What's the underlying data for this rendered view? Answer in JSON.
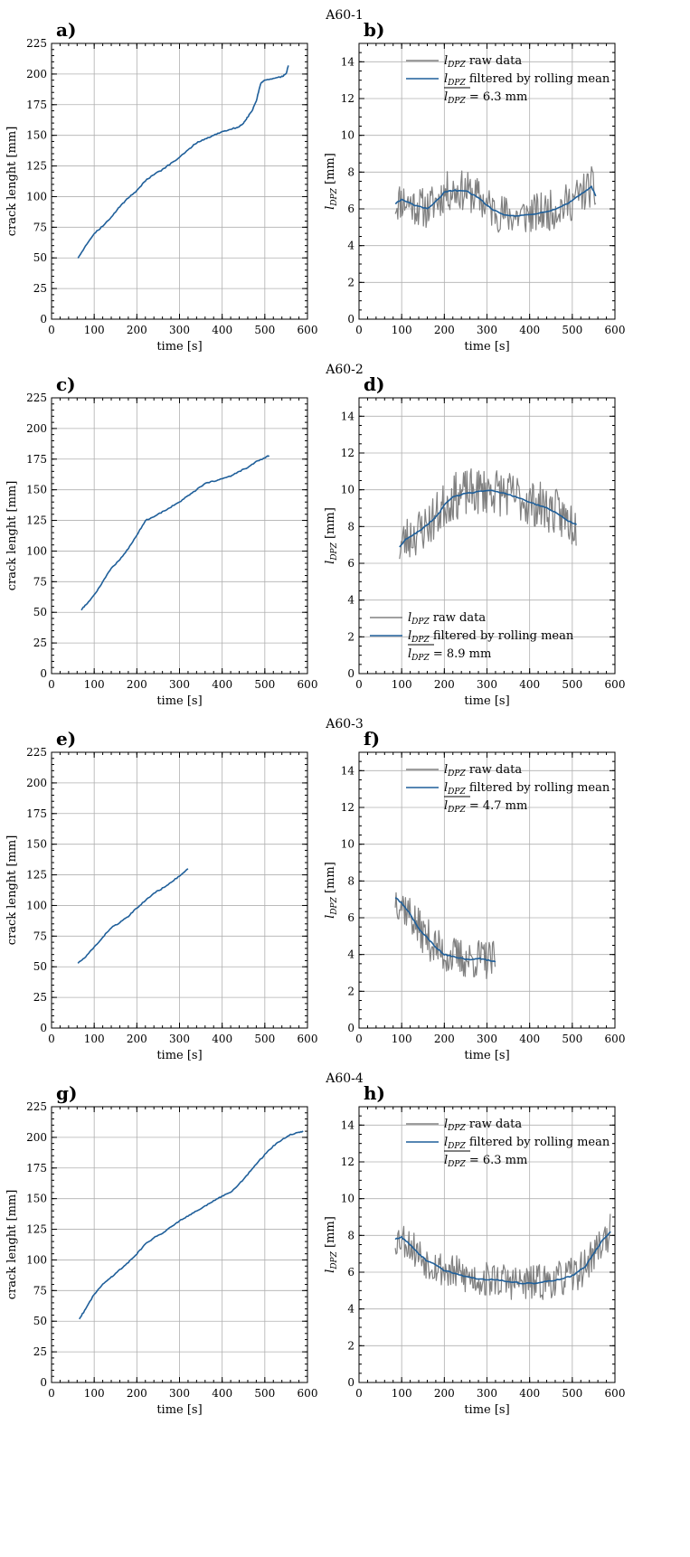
{
  "figure": {
    "panels": [
      {
        "letter": "a)",
        "row_title": "A60-1"
      },
      {
        "letter": "b)"
      },
      {
        "letter": "c)",
        "row_title": "A60-2"
      },
      {
        "letter": "d)"
      },
      {
        "letter": "e)",
        "row_title": "A60-3"
      },
      {
        "letter": "f)"
      },
      {
        "letter": "g)",
        "row_title": "A60-4"
      },
      {
        "letter": "h)"
      }
    ]
  },
  "colors": {
    "raw": "#808080",
    "filtered": "#1f5f9a",
    "grid": "#b0b0b0"
  },
  "chart_data": [
    {
      "type": "line",
      "panel": "a)",
      "row_title": "A60-1",
      "xlabel": "time [s]",
      "ylabel": "crack lenght [mm]",
      "xlim": [
        0,
        600
      ],
      "ylim": [
        0,
        225
      ],
      "xticks": [
        0,
        100,
        200,
        300,
        400,
        500,
        600
      ],
      "yticks": [
        0,
        25,
        50,
        75,
        100,
        125,
        150,
        175,
        200,
        225
      ],
      "grid": true,
      "series": [
        {
          "color": "#1f5f9a",
          "x": [
            62,
            80,
            100,
            120,
            140,
            160,
            180,
            200,
            220,
            240,
            260,
            280,
            300,
            320,
            340,
            360,
            380,
            400,
            420,
            440,
            450,
            460,
            470,
            480,
            490,
            500,
            520,
            540,
            550,
            555
          ],
          "y": [
            50,
            60,
            70,
            76,
            83,
            92,
            99,
            105,
            113,
            118,
            122,
            127,
            132,
            138,
            144,
            147,
            150,
            153,
            155,
            157,
            160,
            165,
            170,
            178,
            192,
            195,
            196,
            198,
            200,
            207
          ]
        }
      ]
    },
    {
      "type": "line",
      "panel": "b)",
      "xlabel": "time [s]",
      "ylabel": "l_DPZ [mm]",
      "xlim": [
        0,
        600
      ],
      "ylim": [
        0,
        15
      ],
      "xticks": [
        0,
        100,
        200,
        300,
        400,
        500,
        600
      ],
      "yticks": [
        0,
        2,
        4,
        6,
        8,
        10,
        12,
        14
      ],
      "grid": true,
      "legend": {
        "placement": "top-center",
        "entries": [
          "l_DPZ raw data",
          "l_DPZ filtered by rolling mean",
          "mean l_DPZ = 6.3 mm"
        ],
        "mean_label": "= 6.3 mm"
      },
      "series": [
        {
          "name": "l_DPZ raw data",
          "color": "#808080",
          "noise": 1.1,
          "seed": 11,
          "x": [
            85,
            100,
            130,
            160,
            190,
            200,
            220,
            250,
            280,
            310,
            340,
            370,
            400,
            430,
            460,
            490,
            520,
            545,
            555
          ],
          "y": [
            6.3,
            6.5,
            6.2,
            6.0,
            6.6,
            6.9,
            7.0,
            7.0,
            6.6,
            6.0,
            5.7,
            5.6,
            5.7,
            5.8,
            6.0,
            6.3,
            6.8,
            7.2,
            6.7
          ]
        },
        {
          "name": "l_DPZ filtered by rolling mean",
          "color": "#1f5f9a",
          "x": [
            85,
            100,
            130,
            160,
            190,
            200,
            220,
            250,
            280,
            310,
            340,
            370,
            400,
            430,
            460,
            490,
            520,
            545,
            555
          ],
          "y": [
            6.3,
            6.5,
            6.2,
            6.0,
            6.6,
            6.9,
            7.0,
            7.0,
            6.6,
            6.0,
            5.7,
            5.6,
            5.7,
            5.8,
            6.0,
            6.3,
            6.8,
            7.2,
            6.7
          ]
        }
      ]
    },
    {
      "type": "line",
      "panel": "c)",
      "row_title": "A60-2",
      "xlabel": "time [s]",
      "ylabel": "crack lenght [mm]",
      "xlim": [
        0,
        600
      ],
      "ylim": [
        0,
        225
      ],
      "xticks": [
        0,
        100,
        200,
        300,
        400,
        500,
        600
      ],
      "yticks": [
        0,
        25,
        50,
        75,
        100,
        125,
        150,
        175,
        200,
        225
      ],
      "grid": true,
      "series": [
        {
          "color": "#1f5f9a",
          "x": [
            70,
            80,
            100,
            120,
            140,
            160,
            180,
            200,
            220,
            240,
            260,
            280,
            300,
            320,
            340,
            360,
            380,
            400,
            420,
            440,
            460,
            480,
            500,
            510
          ],
          "y": [
            52,
            56,
            64,
            75,
            86,
            93,
            102,
            113,
            125,
            128,
            132,
            136,
            140,
            145,
            150,
            155,
            157,
            159,
            161,
            165,
            168,
            173,
            176,
            178
          ]
        }
      ]
    },
    {
      "type": "line",
      "panel": "d)",
      "xlabel": "time [s]",
      "ylabel": "l_DPZ [mm]",
      "xlim": [
        0,
        600
      ],
      "ylim": [
        0,
        15
      ],
      "xticks": [
        0,
        100,
        200,
        300,
        400,
        500,
        600
      ],
      "yticks": [
        0,
        2,
        4,
        6,
        8,
        10,
        12,
        14
      ],
      "grid": true,
      "legend": {
        "placement": "bottom-left",
        "entries": [
          "l_DPZ raw data",
          "l_DPZ filtered by rolling mean",
          "mean l_DPZ = 8.9 mm"
        ],
        "mean_label": "= 8.9 mm"
      },
      "series": [
        {
          "name": "l_DPZ raw data",
          "color": "#808080",
          "noise": 1.3,
          "seed": 23,
          "x": [
            95,
            110,
            130,
            150,
            170,
            190,
            200,
            220,
            250,
            280,
            310,
            340,
            370,
            400,
            430,
            460,
            490,
            510
          ],
          "y": [
            6.9,
            7.3,
            7.6,
            7.9,
            8.3,
            8.8,
            9.2,
            9.6,
            9.8,
            9.9,
            10.0,
            9.8,
            9.6,
            9.3,
            9.1,
            8.8,
            8.3,
            8.1
          ]
        },
        {
          "name": "l_DPZ filtered by rolling mean",
          "color": "#1f5f9a",
          "x": [
            95,
            110,
            130,
            150,
            170,
            190,
            200,
            220,
            250,
            280,
            310,
            340,
            370,
            400,
            430,
            460,
            490,
            510
          ],
          "y": [
            6.9,
            7.3,
            7.6,
            7.9,
            8.3,
            8.8,
            9.2,
            9.6,
            9.8,
            9.9,
            10.0,
            9.8,
            9.6,
            9.3,
            9.1,
            8.8,
            8.3,
            8.1
          ]
        }
      ]
    },
    {
      "type": "line",
      "panel": "e)",
      "row_title": "A60-3",
      "xlabel": "time [s]",
      "ylabel": "crack lenght [mm]",
      "xlim": [
        0,
        600
      ],
      "ylim": [
        0,
        225
      ],
      "xticks": [
        0,
        100,
        200,
        300,
        400,
        500,
        600
      ],
      "yticks": [
        0,
        25,
        50,
        75,
        100,
        125,
        150,
        175,
        200,
        225
      ],
      "grid": true,
      "series": [
        {
          "color": "#1f5f9a",
          "x": [
            62,
            80,
            100,
            120,
            140,
            160,
            180,
            200,
            220,
            240,
            260,
            280,
            300,
            320
          ],
          "y": [
            53,
            58,
            66,
            74,
            82,
            86,
            91,
            98,
            104,
            110,
            114,
            119,
            124,
            130
          ]
        }
      ]
    },
    {
      "type": "line",
      "panel": "f)",
      "xlabel": "time [s]",
      "ylabel": "l_DPZ [mm]",
      "xlim": [
        0,
        600
      ],
      "ylim": [
        0,
        15
      ],
      "xticks": [
        0,
        100,
        200,
        300,
        400,
        500,
        600
      ],
      "yticks": [
        0,
        2,
        4,
        6,
        8,
        10,
        12,
        14
      ],
      "grid": true,
      "legend": {
        "placement": "top-center",
        "entries": [
          "l_DPZ raw data",
          "l_DPZ filtered by rolling mean",
          "mean l_DPZ = 4.7 mm"
        ],
        "mean_label": "= 4.7 mm"
      },
      "series": [
        {
          "name": "l_DPZ raw data",
          "color": "#808080",
          "noise": 1.1,
          "seed": 37,
          "x": [
            85,
            100,
            120,
            140,
            160,
            180,
            200,
            220,
            240,
            260,
            280,
            300,
            320
          ],
          "y": [
            7.1,
            6.8,
            6.2,
            5.4,
            4.9,
            4.4,
            4.0,
            3.9,
            3.8,
            3.7,
            3.8,
            3.7,
            3.6
          ]
        },
        {
          "name": "l_DPZ filtered by rolling mean",
          "color": "#1f5f9a",
          "x": [
            85,
            100,
            120,
            140,
            160,
            180,
            200,
            220,
            240,
            260,
            280,
            300,
            320
          ],
          "y": [
            7.1,
            6.8,
            6.2,
            5.4,
            4.9,
            4.4,
            4.0,
            3.9,
            3.8,
            3.7,
            3.8,
            3.7,
            3.6
          ]
        }
      ]
    },
    {
      "type": "line",
      "panel": "g)",
      "row_title": "A60-4",
      "xlabel": "time [s]",
      "ylabel": "crack lenght [mm]",
      "xlim": [
        0,
        600
      ],
      "ylim": [
        0,
        225
      ],
      "xticks": [
        0,
        100,
        200,
        300,
        400,
        500,
        600
      ],
      "yticks": [
        0,
        25,
        50,
        75,
        100,
        125,
        150,
        175,
        200,
        225
      ],
      "grid": true,
      "series": [
        {
          "color": "#1f5f9a",
          "x": [
            65,
            80,
            100,
            120,
            140,
            160,
            180,
            200,
            220,
            240,
            260,
            280,
            300,
            320,
            340,
            360,
            380,
            400,
            420,
            440,
            460,
            480,
            500,
            520,
            540,
            560,
            580,
            590
          ],
          "y": [
            52,
            60,
            72,
            80,
            86,
            92,
            98,
            105,
            113,
            118,
            122,
            127,
            132,
            136,
            140,
            144,
            148,
            152,
            155,
            162,
            170,
            178,
            186,
            193,
            198,
            202,
            204,
            205
          ]
        }
      ]
    },
    {
      "type": "line",
      "panel": "h)",
      "xlabel": "time [s]",
      "ylabel": "l_DPZ [mm]",
      "xlim": [
        0,
        600
      ],
      "ylim": [
        0,
        15
      ],
      "xticks": [
        0,
        100,
        200,
        300,
        400,
        500,
        600
      ],
      "yticks": [
        0,
        2,
        4,
        6,
        8,
        10,
        12,
        14
      ],
      "grid": true,
      "legend": {
        "placement": "top-center",
        "entries": [
          "l_DPZ raw data",
          "l_DPZ filtered by rolling mean",
          "mean l_DPZ = 6.3 mm"
        ],
        "mean_label": "= 6.3 mm"
      },
      "series": [
        {
          "name": "l_DPZ raw data",
          "color": "#808080",
          "noise": 1.0,
          "seed": 53,
          "x": [
            85,
            100,
            120,
            140,
            160,
            180,
            200,
            230,
            260,
            290,
            320,
            350,
            380,
            410,
            440,
            470,
            500,
            530,
            550,
            570,
            590
          ],
          "y": [
            7.8,
            7.9,
            7.5,
            7.0,
            6.6,
            6.4,
            6.1,
            5.9,
            5.7,
            5.6,
            5.6,
            5.5,
            5.4,
            5.4,
            5.5,
            5.6,
            5.8,
            6.3,
            7.0,
            7.7,
            8.2
          ]
        },
        {
          "name": "l_DPZ filtered by rolling mean",
          "color": "#1f5f9a",
          "x": [
            85,
            100,
            120,
            140,
            160,
            180,
            200,
            230,
            260,
            290,
            320,
            350,
            380,
            410,
            440,
            470,
            500,
            530,
            550,
            570,
            590
          ],
          "y": [
            7.8,
            7.9,
            7.5,
            7.0,
            6.6,
            6.4,
            6.1,
            5.9,
            5.7,
            5.6,
            5.6,
            5.5,
            5.4,
            5.4,
            5.5,
            5.6,
            5.8,
            6.3,
            7.0,
            7.7,
            8.2
          ]
        }
      ]
    }
  ]
}
